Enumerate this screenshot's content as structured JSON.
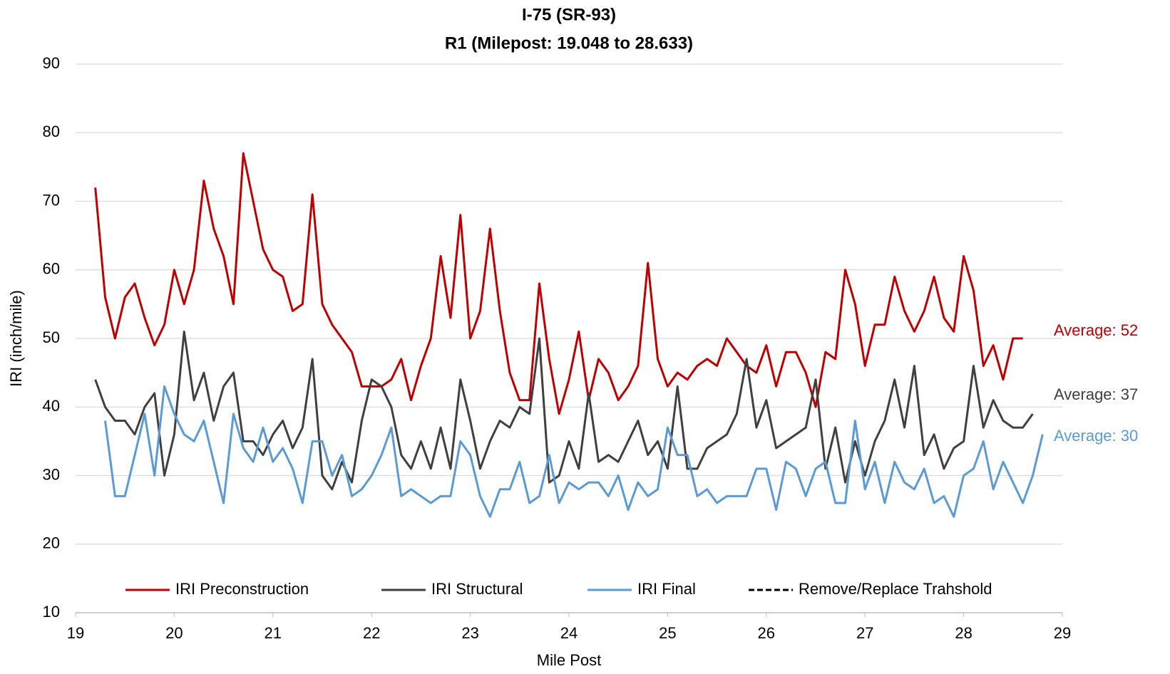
{
  "chart_data": {
    "type": "line",
    "title": "I-75 (SR-93)",
    "subtitle": "R1 (Milepost: 19.048 to 28.633)",
    "x_label": "Mile Post",
    "y_label": "IRI (inch/mile)",
    "xlim": [
      19,
      29
    ],
    "xticks": [
      19,
      20,
      21,
      22,
      23,
      24,
      25,
      26,
      27,
      28,
      29
    ],
    "ylim": [
      10,
      90
    ],
    "yticks": [
      10,
      20,
      30,
      40,
      50,
      60,
      70,
      80,
      90
    ],
    "grid": true,
    "legend": "bottom",
    "x": [
      19.2,
      19.3,
      19.4,
      19.5,
      19.6,
      19.7,
      19.8,
      19.9,
      20.0,
      20.1,
      20.2,
      20.3,
      20.4,
      20.5,
      20.6,
      20.7,
      20.8,
      20.9,
      21.0,
      21.1,
      21.2,
      21.3,
      21.4,
      21.5,
      21.6,
      21.7,
      21.8,
      21.9,
      22.0,
      22.1,
      22.2,
      22.3,
      22.4,
      22.5,
      22.6,
      22.7,
      22.8,
      22.9,
      23.0,
      23.1,
      23.2,
      23.3,
      23.4,
      23.5,
      23.6,
      23.7,
      23.8,
      23.9,
      24.0,
      24.1,
      24.2,
      24.3,
      24.4,
      24.5,
      24.6,
      24.7,
      24.8,
      24.9,
      25.0,
      25.1,
      25.2,
      25.3,
      25.4,
      25.5,
      25.6,
      25.7,
      25.8,
      25.9,
      26.0,
      26.1,
      26.2,
      26.3,
      26.4,
      26.5,
      26.6,
      26.7,
      26.8,
      26.9,
      27.0,
      27.1,
      27.2,
      27.3,
      27.4,
      27.5,
      27.6,
      27.7,
      27.8,
      27.9,
      28.0,
      28.1,
      28.2,
      28.3,
      28.4,
      28.5,
      28.6,
      28.7,
      28.8
    ],
    "series": [
      {
        "name": "IRI Preconstruction",
        "color": "#c00000",
        "dashed": false,
        "values": [
          72,
          56,
          50,
          56,
          58,
          53,
          49,
          52,
          60,
          55,
          60,
          73,
          66,
          62,
          55,
          77,
          70,
          63,
          60,
          59,
          54,
          55,
          71,
          55,
          52,
          50,
          48,
          43,
          43,
          43,
          44,
          47,
          41,
          46,
          50,
          62,
          53,
          68,
          50,
          54,
          66,
          54,
          45,
          41,
          41,
          58,
          47,
          39,
          44,
          51,
          41,
          47,
          45,
          41,
          43,
          46,
          61,
          47,
          43,
          45,
          44,
          46,
          47,
          46,
          50,
          48,
          46,
          45,
          49,
          43,
          48,
          48,
          45,
          40,
          48,
          47,
          60,
          55,
          46,
          52,
          52,
          59,
          54,
          51,
          54,
          59,
          53,
          51,
          62,
          57,
          46,
          49,
          44,
          50,
          50,
          null,
          null
        ]
      },
      {
        "name": "IRI Structural",
        "color": "#404040",
        "dashed": false,
        "values": [
          44,
          40,
          38,
          38,
          36,
          40,
          42,
          30,
          36,
          51,
          41,
          45,
          38,
          43,
          45,
          35,
          35,
          33,
          36,
          38,
          34,
          37,
          47,
          30,
          28,
          32,
          29,
          38,
          44,
          43,
          40,
          33,
          31,
          35,
          31,
          37,
          31,
          44,
          38,
          31,
          35,
          38,
          37,
          40,
          39,
          50,
          29,
          30,
          35,
          31,
          42,
          32,
          33,
          32,
          35,
          38,
          33,
          35,
          31,
          43,
          31,
          31,
          34,
          35,
          36,
          39,
          47,
          37,
          41,
          34,
          35,
          36,
          37,
          44,
          31,
          37,
          29,
          35,
          30,
          35,
          38,
          44,
          37,
          46,
          33,
          36,
          31,
          34,
          35,
          46,
          37,
          41,
          38,
          37,
          37,
          39,
          null
        ]
      },
      {
        "name": "IRI Final",
        "color": "#5b9bd5",
        "dashed": false,
        "values": [
          null,
          38,
          27,
          27,
          33,
          39,
          30,
          43,
          39,
          36,
          35,
          38,
          32,
          26,
          39,
          34,
          32,
          37,
          32,
          34,
          31,
          26,
          35,
          35,
          30,
          33,
          27,
          28,
          30,
          33,
          37,
          27,
          28,
          27,
          26,
          27,
          27,
          35,
          33,
          27,
          24,
          28,
          28,
          32,
          26,
          27,
          33,
          26,
          29,
          28,
          29,
          29,
          27,
          30,
          25,
          29,
          27,
          28,
          37,
          33,
          33,
          27,
          28,
          26,
          27,
          27,
          27,
          31,
          31,
          25,
          32,
          31,
          27,
          31,
          32,
          26,
          26,
          38,
          28,
          32,
          26,
          32,
          29,
          28,
          31,
          26,
          27,
          24,
          30,
          31,
          35,
          28,
          32,
          29,
          26,
          30,
          36
        ]
      },
      {
        "name": "Remove/Replace Trahshold",
        "color": "#000000",
        "dashed": true,
        "values": [
          null,
          null,
          null,
          null,
          null,
          null,
          null,
          null,
          null,
          null,
          null,
          null,
          null,
          null,
          null,
          null,
          null,
          null,
          null,
          null,
          null,
          null,
          null,
          null,
          null,
          null,
          null,
          null,
          null,
          null,
          null,
          null,
          null,
          null,
          null,
          null,
          null,
          null,
          null,
          null,
          null,
          null,
          null,
          null,
          null,
          null,
          null,
          null,
          null,
          null,
          null,
          null,
          null,
          null,
          null,
          null,
          null,
          null,
          null,
          null,
          null,
          null,
          null,
          null,
          null,
          null,
          null,
          null,
          null,
          null,
          null,
          null,
          null,
          null,
          null,
          null,
          null,
          null,
          null,
          null,
          null,
          null,
          null,
          null,
          null,
          null,
          null,
          null,
          null,
          null,
          null,
          null,
          null,
          null,
          null,
          null,
          null
        ]
      }
    ],
    "annotations": [
      {
        "text": "Average: 52",
        "color": "#c00000"
      },
      {
        "text": "Average: 37",
        "color": "#404040"
      },
      {
        "text": "Average: 30",
        "color": "#5b9bd5"
      }
    ]
  }
}
